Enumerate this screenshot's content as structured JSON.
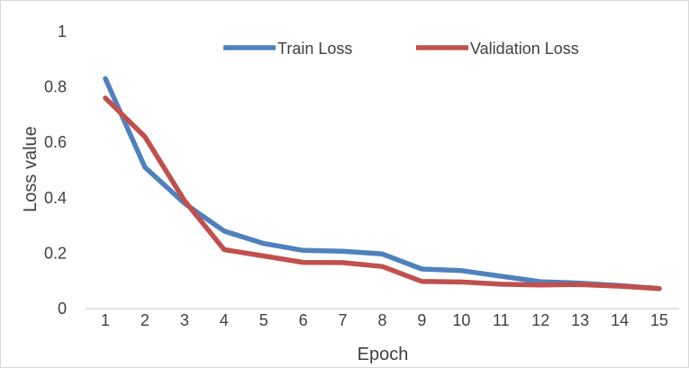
{
  "chart_data": {
    "type": "line",
    "title": "",
    "xlabel": "Epoch",
    "ylabel": "Loss value",
    "categories": [
      "1",
      "2",
      "3",
      "4",
      "5",
      "6",
      "7",
      "8",
      "9",
      "10",
      "11",
      "12",
      "13",
      "14",
      "15"
    ],
    "ylim": [
      0,
      1
    ],
    "yticks": [
      "0",
      "0.2",
      "0.4",
      "0.6",
      "0.8",
      "1"
    ],
    "grid": false,
    "legend_position": "top",
    "series": [
      {
        "name": "Train Loss",
        "color": "#4f81bd",
        "values": [
          0.83,
          0.51,
          0.38,
          0.28,
          0.235,
          0.21,
          0.207,
          0.197,
          0.143,
          0.137,
          0.117,
          0.097,
          0.092,
          0.083,
          0.072
        ]
      },
      {
        "name": "Validation Loss",
        "color": "#c0504d",
        "values": [
          0.76,
          0.62,
          0.39,
          0.213,
          0.19,
          0.167,
          0.166,
          0.152,
          0.098,
          0.096,
          0.088,
          0.085,
          0.087,
          0.081,
          0.072
        ]
      }
    ]
  }
}
